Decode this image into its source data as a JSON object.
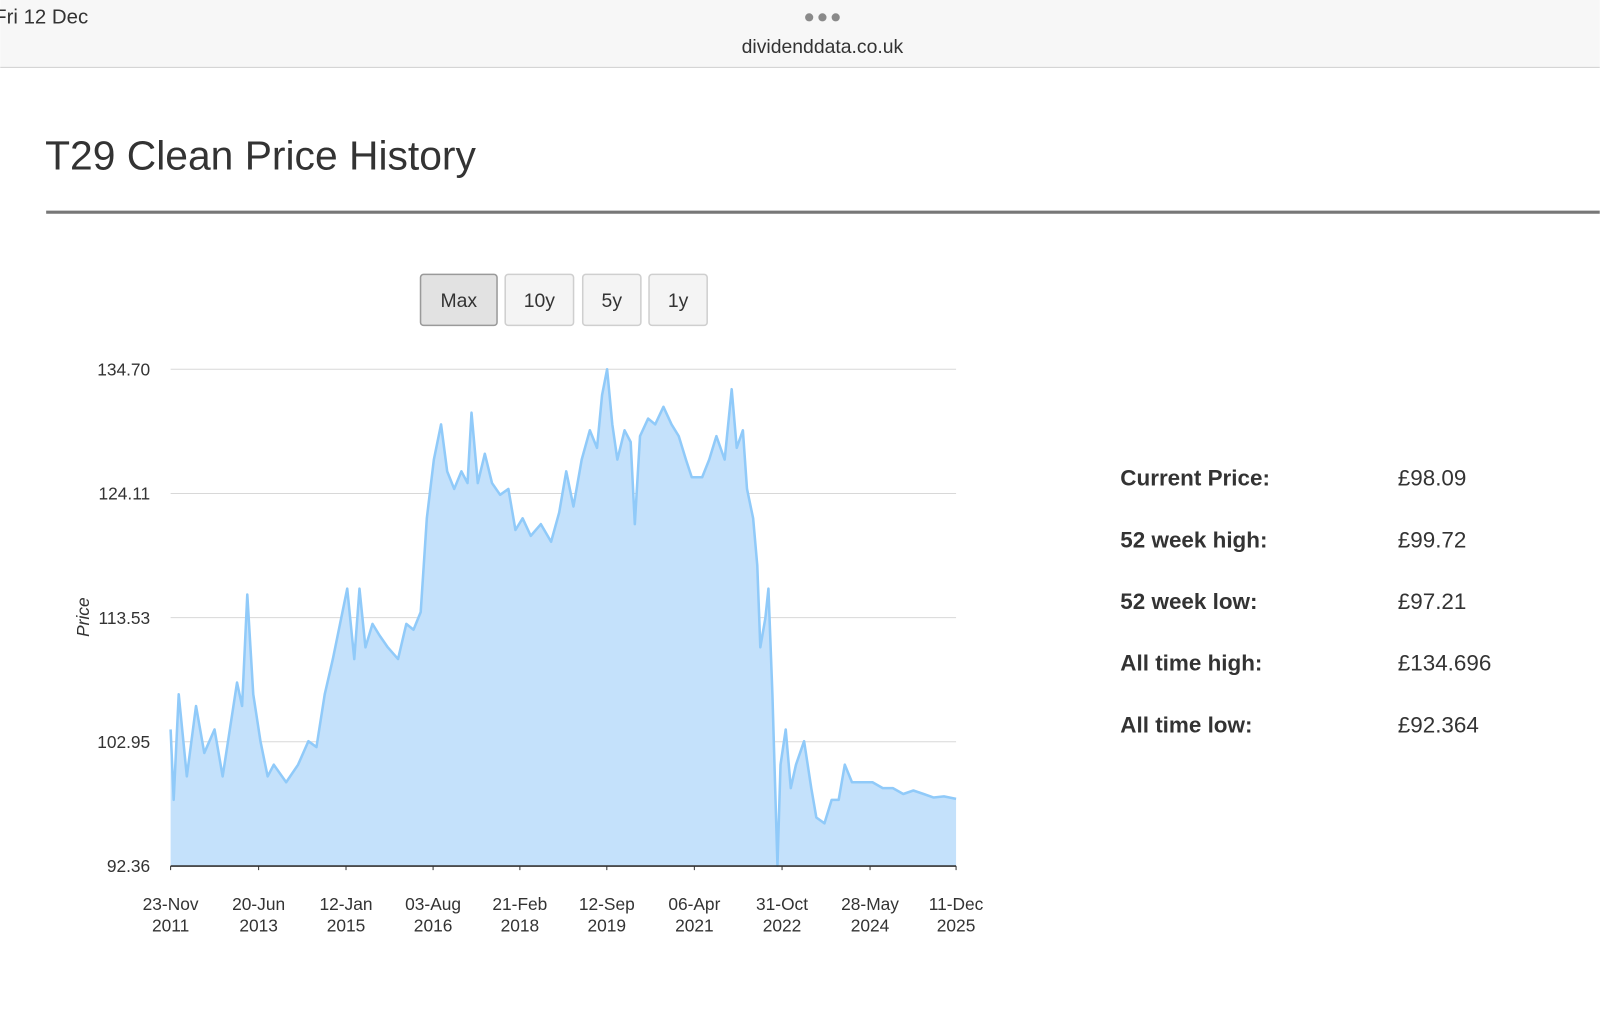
{
  "status_bar": {
    "date": "Fri 12 Dec",
    "url": "dividenddata.co.uk"
  },
  "header": {
    "title": "T29 Clean Price History"
  },
  "range_buttons": [
    {
      "label": "Max",
      "active": true
    },
    {
      "label": "10y",
      "active": false
    },
    {
      "label": "5y",
      "active": false
    },
    {
      "label": "1y",
      "active": false
    }
  ],
  "chart_data": {
    "type": "area",
    "y_label": "Price",
    "color": "#90caf9",
    "fill": "#c4e1fb",
    "grid": true,
    "xlim": [
      "2011-11-23",
      "2025-12-11"
    ],
    "ylim": [
      92.36,
      134.7
    ],
    "yticks": [
      92.36,
      102.95,
      113.53,
      124.11,
      {
        "value": 134.7,
        "label": "134.70"
      }
    ],
    "xticks": [
      {
        "value": "2011-11-23",
        "label": [
          "23-Nov",
          "2011"
        ]
      },
      {
        "value": "2013-06-20",
        "label": [
          "20-Jun",
          "2013"
        ]
      },
      {
        "value": "2015-01-12",
        "label": [
          "12-Jan",
          "2015"
        ]
      },
      {
        "value": "2016-08-03",
        "label": [
          "03-Aug",
          "2016"
        ]
      },
      {
        "value": "2018-02-21",
        "label": [
          "21-Feb",
          "2018"
        ]
      },
      {
        "value": "2019-09-12",
        "label": [
          "12-Sep",
          "2019"
        ]
      },
      {
        "value": "2021-04-06",
        "label": [
          "06-Apr",
          "2021"
        ]
      },
      {
        "value": "2022-10-31",
        "label": [
          "31-Oct",
          "2022"
        ]
      },
      {
        "value": "2024-05-28",
        "label": [
          "28-May",
          "2024"
        ]
      },
      {
        "value": "2025-12-11",
        "label": [
          "11-Dec",
          "2025"
        ]
      }
    ],
    "x": [
      "2011-11-23",
      "2011-12-13",
      "2012-01-15",
      "2012-03-08",
      "2012-05-07",
      "2012-06-30",
      "2012-09-05",
      "2012-10-28",
      "2012-12-14",
      "2013-01-30",
      "2013-03-04",
      "2013-04-07",
      "2013-05-16",
      "2013-07-02",
      "2013-08-18",
      "2013-09-27",
      "2013-12-17",
      "2014-03-05",
      "2014-05-11",
      "2014-07-03",
      "2014-08-26",
      "2014-10-18",
      "2014-12-04",
      "2015-01-20",
      "2015-03-07",
      "2015-04-10",
      "2015-05-19",
      "2015-07-04",
      "2015-08-20",
      "2015-10-12",
      "2015-12-18",
      "2016-02-10",
      "2016-03-28",
      "2016-05-14",
      "2016-06-23",
      "2016-08-08",
      "2016-09-24",
      "2016-11-03",
      "2016-12-19",
      "2017-02-04",
      "2017-03-16",
      "2017-04-11",
      "2017-05-22",
      "2017-07-07",
      "2017-08-23",
      "2017-10-15",
      "2017-12-08",
      "2018-01-23",
      "2018-03-11",
      "2018-05-03",
      "2018-07-08",
      "2018-09-13",
      "2018-11-05",
      "2018-12-21",
      "2019-02-06",
      "2019-04-01",
      "2019-05-24",
      "2019-07-10",
      "2019-08-12",
      "2019-09-14",
      "2019-10-18",
      "2019-11-20",
      "2020-01-06",
      "2020-02-15",
      "2020-03-13",
      "2020-04-16",
      "2020-06-08",
      "2020-07-24",
      "2020-09-16",
      "2020-11-08",
      "2020-12-25",
      "2021-02-10",
      "2021-03-20",
      "2021-05-27",
      "2021-07-12",
      "2021-08-28",
      "2021-10-21",
      "2021-12-06",
      "2022-01-08",
      "2022-02-17",
      "2022-03-16",
      "2022-04-25",
      "2022-05-22",
      "2022-06-11",
      "2022-07-14",
      "2022-08-03",
      "2022-08-29",
      "2022-10-01",
      "2022-10-21",
      "2022-11-24",
      "2022-12-27",
      "2023-01-30",
      "2023-03-24",
      "2023-05-10",
      "2023-06-12",
      "2023-08-04",
      "2023-09-20",
      "2023-11-05",
      "2023-12-15",
      "2024-01-31",
      "2024-04-07",
      "2024-06-13",
      "2024-08-19",
      "2024-10-24",
      "2024-12-31",
      "2025-03-07",
      "2025-05-13",
      "2025-07-18",
      "2025-09-23",
      "2025-12-11"
    ],
    "values": [
      104,
      98,
      107,
      100,
      106,
      102,
      104,
      100,
      104,
      108,
      106,
      115.5,
      107,
      103,
      100,
      101,
      99.5,
      101,
      103,
      102.5,
      107,
      110,
      113,
      116,
      110,
      116,
      111,
      113,
      112,
      111,
      110,
      113,
      112.5,
      114,
      122,
      127,
      130,
      126,
      124.5,
      126,
      125,
      131,
      125,
      127.5,
      125,
      124,
      124.5,
      121,
      122,
      120.5,
      121.5,
      120,
      122.5,
      126,
      123,
      127,
      129.5,
      128,
      132.5,
      134.7,
      130,
      127,
      129.5,
      128.5,
      121.5,
      129,
      130.5,
      130,
      131.5,
      130,
      129,
      127,
      125.5,
      125.5,
      127,
      129,
      127,
      133,
      128,
      129.5,
      124.5,
      122,
      118,
      111,
      113.5,
      116,
      107,
      92.4,
      101,
      104,
      99,
      101,
      103,
      99,
      96.5,
      96,
      98,
      98,
      101,
      99.5,
      99.5,
      99.5,
      99,
      99,
      98.5,
      98.8,
      98.5,
      98.2,
      98.3,
      98.09
    ]
  },
  "stats": [
    {
      "label": "Current Price:",
      "value": "£98.09"
    },
    {
      "label": "52 week high:",
      "value": "£99.72"
    },
    {
      "label": "52 week low:",
      "value": "£97.21"
    },
    {
      "label": "All time high:",
      "value": "£134.696"
    },
    {
      "label": "All time low:",
      "value": "£92.364"
    }
  ]
}
